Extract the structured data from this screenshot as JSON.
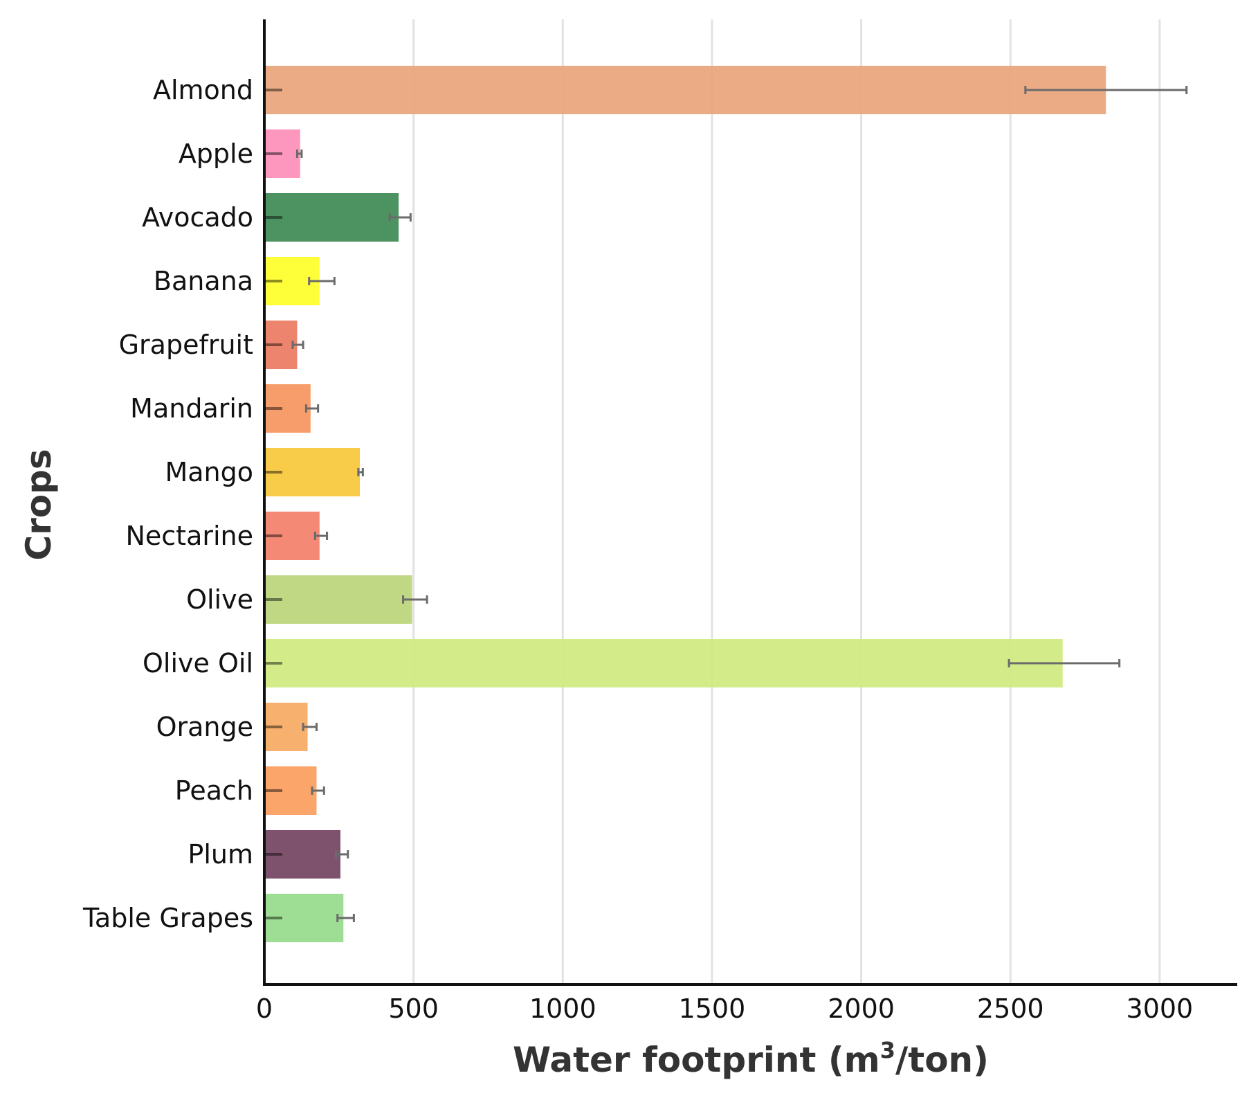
{
  "chart_data": {
    "type": "bar",
    "orientation": "horizontal",
    "title": "",
    "xlabel": {
      "before": "Water footprint (m",
      "sup": "3",
      "after": "/ton)"
    },
    "ylabel": "Crops",
    "xlim": [
      0,
      3250
    ],
    "xticks": [
      0,
      500,
      1000,
      1500,
      2000,
      2500,
      3000
    ],
    "xtick_labels": [
      "0",
      "500",
      "1000",
      "1500",
      "2000",
      "2500",
      "3000"
    ],
    "grid": "vertical",
    "categories": [
      "Almond",
      "Apple",
      "Avocado",
      "Banana",
      "Grapefruit",
      "Mandarin",
      "Mango",
      "Nectarine",
      "Olive",
      "Olive Oil",
      "Orange",
      "Peach",
      "Plum",
      "Table Grapes"
    ],
    "values": [
      2820,
      120,
      450,
      185,
      110,
      155,
      320,
      185,
      495,
      2675,
      145,
      175,
      255,
      265
    ],
    "error_low": [
      2550,
      110,
      420,
      150,
      95,
      140,
      315,
      170,
      465,
      2495,
      130,
      160,
      240,
      245
    ],
    "error_high": [
      3090,
      125,
      490,
      235,
      130,
      180,
      330,
      210,
      545,
      2865,
      175,
      200,
      280,
      300
    ],
    "colors": [
      "#e9a67c",
      "#fd8fb8",
      "#3f8a55",
      "#ffff2a",
      "#ec7b62",
      "#f59660",
      "#f7c73b",
      "#f3806c",
      "#bbd47a",
      "#d1e981",
      "#f6aa63",
      "#fc9e5f",
      "#744562",
      "#97db8c"
    ]
  }
}
